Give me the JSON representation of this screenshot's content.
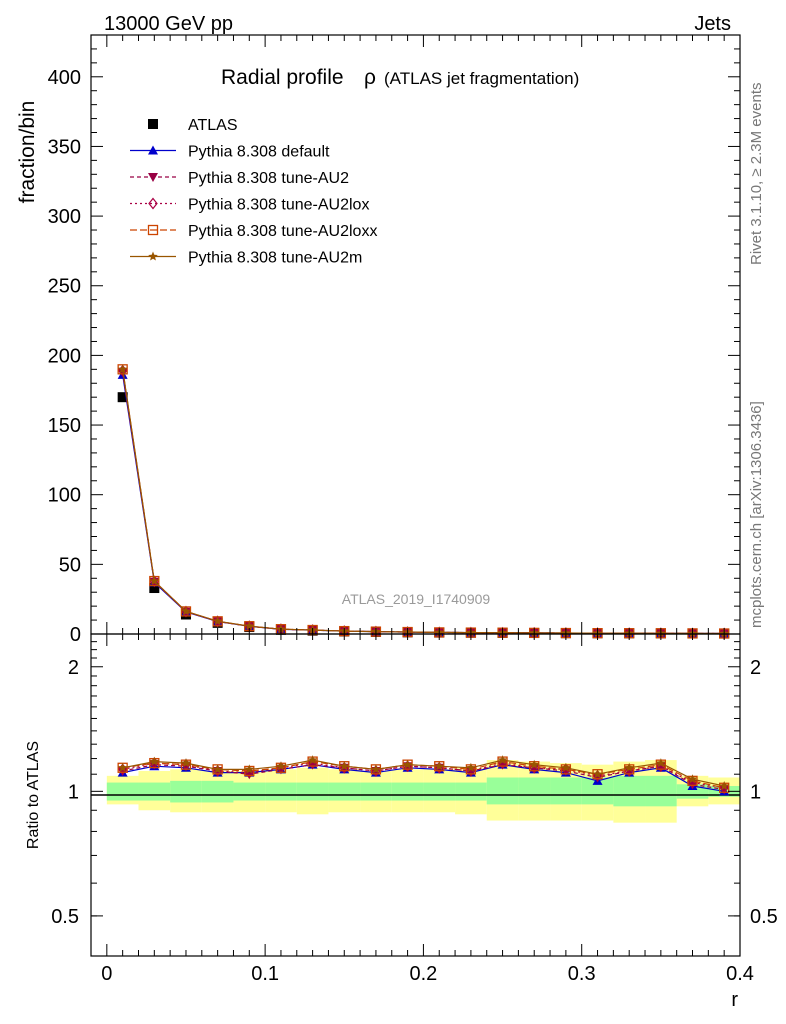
{
  "header": {
    "left": "13000 GeV pp",
    "right": "Jets"
  },
  "side_labels": {
    "rivet": "Rivet 3.1.10, ≥ 2.3M events",
    "mcplots": "mcplots.cern.ch [arXiv:1306.3436]"
  },
  "watermark": "ATLAS_2019_I1740909",
  "chart_data": [
    {
      "type": "line",
      "panel": "main",
      "title": "Radial profile",
      "title_symbol": "ρ",
      "subtitle": "(ATLAS jet fragmentation)",
      "xlabel": "",
      "ylabel": "fraction/bin",
      "xlim": [
        -0.01,
        0.4
      ],
      "ylim": [
        0,
        430
      ],
      "yticks": [
        0,
        50,
        100,
        150,
        200,
        250,
        300,
        350,
        400
      ],
      "x": [
        0.01,
        0.03,
        0.05,
        0.07,
        0.09,
        0.11,
        0.13,
        0.15,
        0.17,
        0.19,
        0.21,
        0.23,
        0.25,
        0.27,
        0.29,
        0.31,
        0.33,
        0.35,
        0.37,
        0.39
      ],
      "series": [
        {
          "name": "ATLAS",
          "color": "#000000",
          "marker": "square",
          "style": "points",
          "values": [
            170,
            33,
            14,
            8,
            5,
            3,
            2.4,
            1.8,
            1.5,
            1.2,
            1.0,
            0.9,
            0.8,
            0.7,
            0.6,
            0.55,
            0.5,
            0.45,
            0.4,
            0.35
          ]
        },
        {
          "name": "Pythia 8.308 default",
          "color": "#0000cc",
          "marker": "triangle-up",
          "dash": "",
          "values": [
            186,
            37,
            15.8,
            9.0,
            5.5,
            3.4,
            2.8,
            2.0,
            1.7,
            1.38,
            1.14,
            1.0,
            0.93,
            0.79,
            0.67,
            0.58,
            0.55,
            0.51,
            0.41,
            0.35
          ]
        },
        {
          "name": "Pythia 8.308 tune-AU2",
          "color": "#990044",
          "marker": "triangle-down",
          "dash": "4,3",
          "values": [
            188,
            37.5,
            16.0,
            9.0,
            5.5,
            3.4,
            2.8,
            2.05,
            1.7,
            1.38,
            1.14,
            1.0,
            0.93,
            0.8,
            0.68,
            0.6,
            0.56,
            0.52,
            0.41,
            0.35
          ]
        },
        {
          "name": "Pythia 8.308 tune-AU2lox",
          "color": "#aa0044",
          "marker": "diamond-open",
          "dash": "2,3",
          "values": [
            189,
            37.8,
            16.1,
            9.1,
            5.6,
            3.45,
            2.83,
            2.06,
            1.71,
            1.39,
            1.15,
            1.01,
            0.94,
            0.8,
            0.68,
            0.6,
            0.56,
            0.52,
            0.42,
            0.36
          ]
        },
        {
          "name": "Pythia 8.308 tune-AU2loxx",
          "color": "#cc4400",
          "marker": "square-open",
          "dash": "7,3",
          "values": [
            190,
            38,
            16.2,
            9.1,
            5.6,
            3.46,
            2.85,
            2.07,
            1.72,
            1.4,
            1.15,
            1.01,
            0.94,
            0.81,
            0.69,
            0.61,
            0.57,
            0.53,
            0.42,
            0.36
          ]
        },
        {
          "name": "Pythia 8.308 tune-AU2m",
          "color": "#995500",
          "marker": "star",
          "dash": "",
          "values": [
            190,
            38,
            16.3,
            9.2,
            5.65,
            3.48,
            2.86,
            2.08,
            1.73,
            1.41,
            1.16,
            1.02,
            0.95,
            0.81,
            0.69,
            0.61,
            0.57,
            0.53,
            0.42,
            0.36
          ]
        }
      ]
    },
    {
      "type": "line",
      "panel": "ratio",
      "xlabel": "r",
      "ylabel": "Ratio to ATLAS",
      "scale": "log",
      "xlim": [
        -0.01,
        0.4
      ],
      "ylim": [
        0.4,
        2.4
      ],
      "xticks": [
        0,
        0.1,
        0.2,
        0.3,
        0.4
      ],
      "xticklabels": [
        "0",
        "0.1",
        "0.2",
        "0.3",
        "0.4"
      ],
      "yticks": [
        0.5,
        1,
        2
      ],
      "yticklabels": [
        "0.5",
        "1",
        "2"
      ],
      "band_edges": [
        0.0,
        0.02,
        0.04,
        0.06,
        0.08,
        0.1,
        0.12,
        0.14,
        0.16,
        0.18,
        0.2,
        0.22,
        0.24,
        0.26,
        0.28,
        0.3,
        0.32,
        0.34,
        0.36,
        0.38,
        0.4
      ],
      "band_inner": [
        [
          0.95,
          1.05
        ],
        [
          0.95,
          1.05
        ],
        [
          0.94,
          1.06
        ],
        [
          0.94,
          1.06
        ],
        [
          0.95,
          1.05
        ],
        [
          0.95,
          1.05
        ],
        [
          0.95,
          1.05
        ],
        [
          0.95,
          1.05
        ],
        [
          0.95,
          1.05
        ],
        [
          0.95,
          1.05
        ],
        [
          0.95,
          1.05
        ],
        [
          0.95,
          1.05
        ],
        [
          0.93,
          1.08
        ],
        [
          0.93,
          1.08
        ],
        [
          0.93,
          1.08
        ],
        [
          0.93,
          1.08
        ],
        [
          0.92,
          1.09
        ],
        [
          0.92,
          1.09
        ],
        [
          0.96,
          1.04
        ],
        [
          0.97,
          1.03
        ]
      ],
      "band_outer": [
        [
          0.93,
          1.09
        ],
        [
          0.9,
          1.12
        ],
        [
          0.89,
          1.13
        ],
        [
          0.89,
          1.12
        ],
        [
          0.89,
          1.12
        ],
        [
          0.89,
          1.13
        ],
        [
          0.88,
          1.14
        ],
        [
          0.89,
          1.13
        ],
        [
          0.89,
          1.12
        ],
        [
          0.89,
          1.13
        ],
        [
          0.89,
          1.13
        ],
        [
          0.88,
          1.14
        ],
        [
          0.85,
          1.19
        ],
        [
          0.85,
          1.18
        ],
        [
          0.85,
          1.17
        ],
        [
          0.85,
          1.16
        ],
        [
          0.84,
          1.18
        ],
        [
          0.84,
          1.19
        ],
        [
          0.92,
          1.09
        ],
        [
          0.93,
          1.08
        ]
      ],
      "x": [
        0.01,
        0.03,
        0.05,
        0.07,
        0.09,
        0.11,
        0.13,
        0.15,
        0.17,
        0.19,
        0.21,
        0.23,
        0.25,
        0.27,
        0.29,
        0.31,
        0.33,
        0.35,
        0.37,
        0.39
      ],
      "series": [
        {
          "name": "Pythia 8.308 default",
          "color": "#0000cc",
          "marker": "triangle-up",
          "dash": "",
          "values": [
            1.11,
            1.15,
            1.14,
            1.11,
            1.11,
            1.13,
            1.16,
            1.13,
            1.11,
            1.14,
            1.13,
            1.11,
            1.16,
            1.13,
            1.11,
            1.06,
            1.11,
            1.14,
            1.03,
            1.0
          ]
        },
        {
          "name": "Pythia 8.308 tune-AU2",
          "color": "#990044",
          "marker": "triangle-down",
          "dash": "4,3",
          "values": [
            1.12,
            1.16,
            1.15,
            1.12,
            1.1,
            1.13,
            1.16,
            1.14,
            1.12,
            1.15,
            1.14,
            1.12,
            1.16,
            1.14,
            1.12,
            1.08,
            1.12,
            1.15,
            1.04,
            1.01
          ]
        },
        {
          "name": "Pythia 8.308 tune-AU2lox",
          "color": "#aa0044",
          "marker": "diamond-open",
          "dash": "2,3",
          "values": [
            1.13,
            1.17,
            1.16,
            1.12,
            1.11,
            1.14,
            1.17,
            1.14,
            1.12,
            1.15,
            1.14,
            1.12,
            1.17,
            1.14,
            1.13,
            1.09,
            1.12,
            1.15,
            1.05,
            1.02
          ]
        },
        {
          "name": "Pythia 8.308 tune-AU2loxx",
          "color": "#cc4400",
          "marker": "square-open",
          "dash": "7,3",
          "values": [
            1.14,
            1.17,
            1.16,
            1.13,
            1.12,
            1.14,
            1.18,
            1.15,
            1.13,
            1.16,
            1.15,
            1.13,
            1.18,
            1.15,
            1.13,
            1.1,
            1.13,
            1.16,
            1.06,
            1.02
          ]
        },
        {
          "name": "Pythia 8.308 tune-AU2m",
          "color": "#995500",
          "marker": "star",
          "dash": "",
          "values": [
            1.14,
            1.18,
            1.17,
            1.13,
            1.13,
            1.15,
            1.19,
            1.15,
            1.13,
            1.16,
            1.15,
            1.14,
            1.19,
            1.16,
            1.14,
            1.1,
            1.14,
            1.17,
            1.07,
            1.03
          ]
        }
      ],
      "band_colors": {
        "inner": "#99ff99",
        "outer": "#ffff99"
      }
    }
  ]
}
